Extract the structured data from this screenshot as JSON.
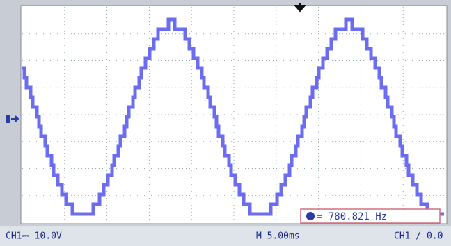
{
  "bottom_bar": {
    "channel_scale": "CH1⎓ 10.0V",
    "timebase": "M 5.00ms",
    "trigger": "CH1 / 0.0"
  },
  "measurement": {
    "readout": "= 780.821 Hz"
  }
}
